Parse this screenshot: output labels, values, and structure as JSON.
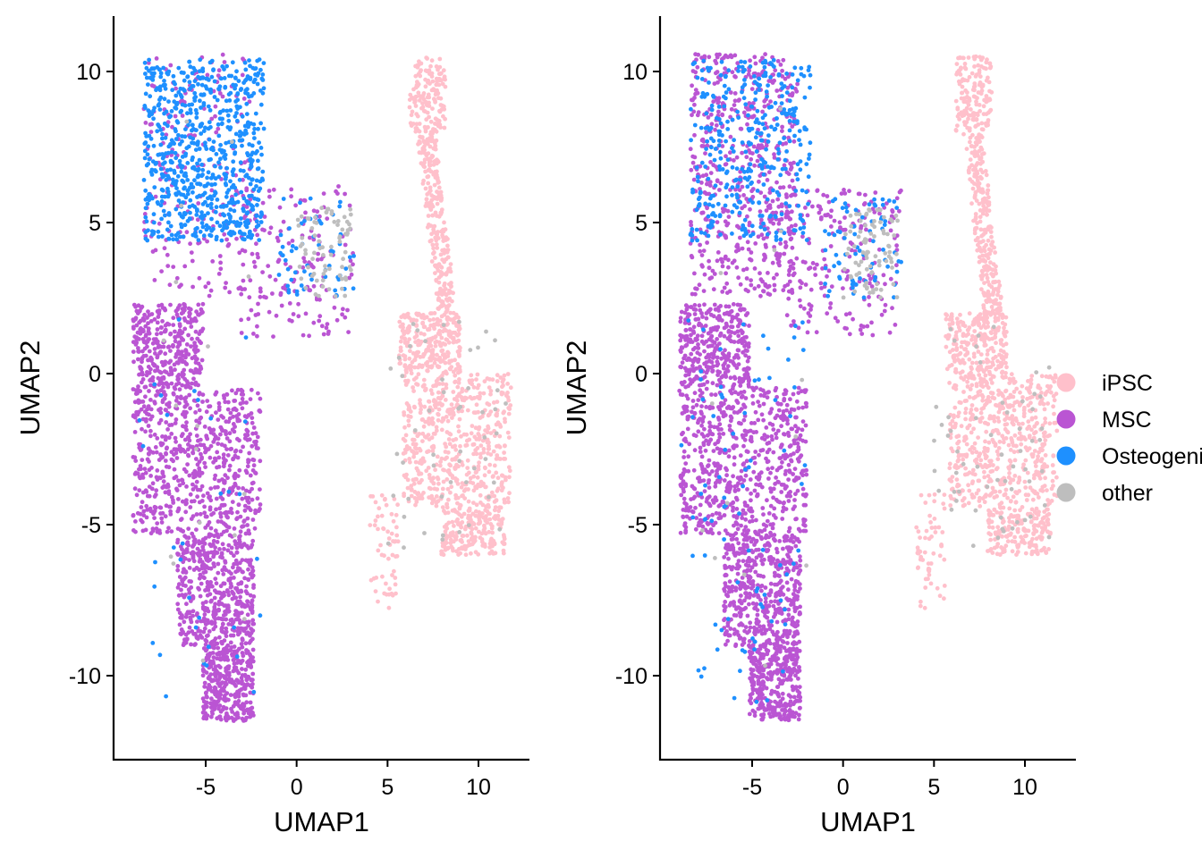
{
  "chart_data": [
    {
      "type": "scatter",
      "title": "",
      "xlabel": "UMAP1",
      "ylabel": "UMAP2",
      "xlim": [
        -9.7,
        12.9
      ],
      "ylim": [
        -12.5,
        12.0
      ],
      "xticks": [
        -5,
        0,
        5,
        10
      ],
      "yticks": [
        -10,
        -5,
        0,
        5,
        10
      ],
      "xtick_labels": [
        "-5",
        "0",
        "5",
        "10"
      ],
      "ytick_labels": [
        "-10",
        "-5",
        "0",
        "5",
        "10"
      ],
      "grid": false,
      "series": [
        {
          "name": "iPSC",
          "color": "#FFC0CB",
          "clusters": [
            {
              "region": "ipsc-top",
              "x": [
                6.2,
                8.2
              ],
              "y": [
                8.0,
                10.5
              ],
              "approx_points": 900
            },
            {
              "region": "ipsc-stalk",
              "x": [
                6.2,
                8.8
              ],
              "y": [
                2.0,
                8.0
              ],
              "approx_points": 1500
            },
            {
              "region": "ipsc-body",
              "x": [
                4.8,
                11.8
              ],
              "y": [
                -6.0,
                2.0
              ],
              "approx_points": 6000
            },
            {
              "region": "ipsc-tail",
              "x": [
                4.0,
                5.6
              ],
              "y": [
                -7.8,
                -4.0
              ],
              "approx_points": 350
            }
          ]
        },
        {
          "name": "MSC",
          "color": "#BA55D3",
          "clusters": [
            {
              "region": "msc-trunk",
              "x": [
                -9.0,
                -2.0
              ],
              "y": [
                -11.5,
                2.3
              ],
              "approx_points": 11000
            },
            {
              "region": "msc-upper-mix",
              "x": [
                -8.4,
                -2.5
              ],
              "y": [
                2.5,
                10.6
              ],
              "approx_points": 1200
            },
            {
              "region": "msc-middle-blob",
              "x": [
                -3.2,
                3.2
              ],
              "y": [
                1.2,
                6.2
              ],
              "approx_points": 1000
            }
          ]
        },
        {
          "name": "Osteogenic",
          "color": "#1E90FF",
          "clusters": [
            {
              "region": "osteo-top",
              "x": [
                -8.4,
                -1.8
              ],
              "y": [
                4.4,
                10.4
              ],
              "approx_points": 4500
            },
            {
              "region": "osteo-middle",
              "x": [
                -1.0,
                3.2
              ],
              "y": [
                2.5,
                5.8
              ],
              "approx_points": 350
            },
            {
              "region": "osteo-scatter",
              "x": [
                -9.0,
                -2.0
              ],
              "y": [
                -11.0,
                2.0
              ],
              "approx_points": 200
            }
          ]
        },
        {
          "name": "other",
          "color": "#BEBEBE",
          "clusters": [
            {
              "region": "other-middle",
              "x": [
                0.0,
                3.0
              ],
              "y": [
                2.5,
                5.5
              ],
              "approx_points": 450
            },
            {
              "region": "other-ipsc",
              "x": [
                5.0,
                11.5
              ],
              "y": [
                -6.0,
                2.0
              ],
              "approx_points": 300
            },
            {
              "region": "other-msc",
              "x": [
                -8.0,
                -2.0
              ],
              "y": [
                -10.0,
                9.0
              ],
              "approx_points": 100
            }
          ]
        }
      ]
    },
    {
      "type": "scatter",
      "title": "",
      "xlabel": "UMAP1",
      "ylabel": "UMAP2",
      "xlim": [
        -9.7,
        12.9
      ],
      "ylim": [
        -12.5,
        12.0
      ],
      "xticks": [
        -5,
        0,
        5,
        10
      ],
      "yticks": [
        -10,
        -5,
        0,
        5,
        10
      ],
      "xtick_labels": [
        "-5",
        "0",
        "5",
        "10"
      ],
      "ytick_labels": [
        "-10",
        "-5",
        "0",
        "5",
        "10"
      ],
      "grid": false,
      "series": [
        {
          "name": "iPSC",
          "color": "#FFC0CB",
          "clusters": [
            {
              "region": "ipsc-top",
              "x": [
                6.2,
                8.2
              ],
              "y": [
                8.0,
                10.5
              ],
              "approx_points": 900
            },
            {
              "region": "ipsc-stalk",
              "x": [
                6.2,
                8.8
              ],
              "y": [
                2.0,
                8.0
              ],
              "approx_points": 1500
            },
            {
              "region": "ipsc-body",
              "x": [
                4.8,
                11.8
              ],
              "y": [
                -6.0,
                2.0
              ],
              "approx_points": 6000
            },
            {
              "region": "ipsc-tail",
              "x": [
                4.0,
                5.6
              ],
              "y": [
                -7.8,
                -4.0
              ],
              "approx_points": 350
            }
          ]
        },
        {
          "name": "MSC",
          "color": "#BA55D3",
          "clusters": [
            {
              "region": "msc-trunk",
              "x": [
                -9.0,
                -2.0
              ],
              "y": [
                -11.5,
                2.3
              ],
              "approx_points": 11000
            },
            {
              "region": "msc-upper",
              "x": [
                -8.4,
                -2.5
              ],
              "y": [
                2.5,
                10.6
              ],
              "approx_points": 3500
            },
            {
              "region": "msc-middle-blob",
              "x": [
                -3.2,
                3.2
              ],
              "y": [
                1.2,
                6.2
              ],
              "approx_points": 1200
            }
          ]
        },
        {
          "name": "Osteogenic",
          "color": "#1E90FF",
          "clusters": [
            {
              "region": "osteo-top",
              "x": [
                -8.4,
                -1.8
              ],
              "y": [
                4.4,
                10.4
              ],
              "approx_points": 2200
            },
            {
              "region": "osteo-middle",
              "x": [
                -1.0,
                3.2
              ],
              "y": [
                2.5,
                5.8
              ],
              "approx_points": 450
            },
            {
              "region": "osteo-trunk",
              "x": [
                -9.0,
                -2.0
              ],
              "y": [
                -11.0,
                2.0
              ],
              "approx_points": 500
            }
          ]
        },
        {
          "name": "other",
          "color": "#BEBEBE",
          "clusters": [
            {
              "region": "other-middle",
              "x": [
                0.0,
                3.0
              ],
              "y": [
                2.5,
                5.5
              ],
              "approx_points": 500
            },
            {
              "region": "other-ipsc",
              "x": [
                5.0,
                11.5
              ],
              "y": [
                -6.0,
                2.0
              ],
              "approx_points": 350
            },
            {
              "region": "other-msc",
              "x": [
                -8.0,
                -2.0
              ],
              "y": [
                -10.0,
                9.0
              ],
              "approx_points": 80
            }
          ]
        }
      ]
    }
  ],
  "legend": {
    "placement": "right",
    "items": [
      {
        "label": "iPSC",
        "color": "#FFC0CB"
      },
      {
        "label": "MSC",
        "color": "#BA55D3"
      },
      {
        "label": "Osteogenic",
        "color": "#1E90FF"
      },
      {
        "label": "other",
        "color": "#BEBEBE"
      }
    ]
  }
}
